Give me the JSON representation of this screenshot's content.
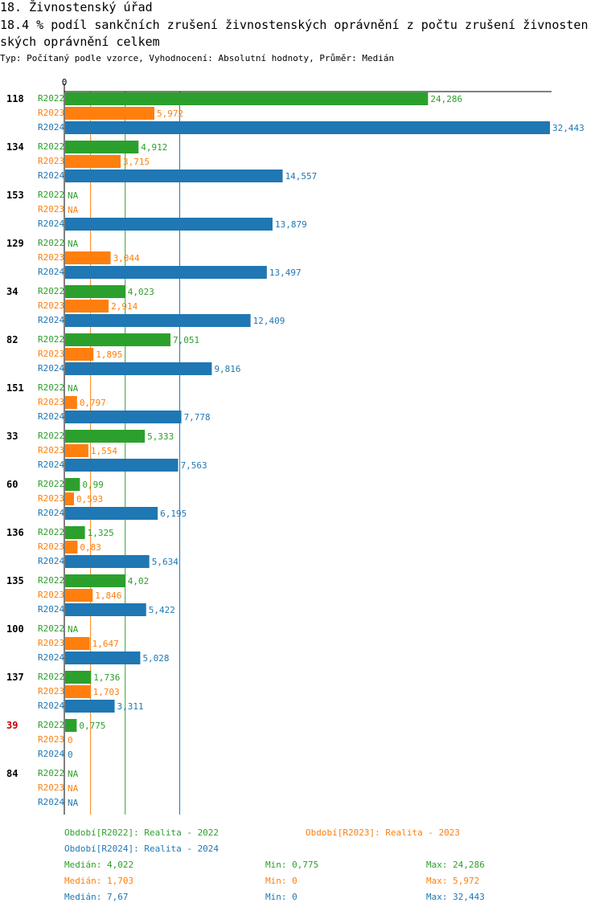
{
  "header": {
    "title_line1": "18. Živnostenský úřad",
    "title_line2": "18.4 % podíl sankčních zrušení živnostenských oprávnění z počtu zrušení živnosten",
    "title_line3": "ských oprávnění  celkem",
    "subtitle": "Typ: Počítaný podle vzorce, Vyhodnocení: Absolutní hodnoty, Průměr: Medián"
  },
  "colors": {
    "R2022": "#2ca02c",
    "R2023": "#ff7f0e",
    "R2024": "#1f77b4",
    "highlight_category": "#cc0000"
  },
  "chart_data": {
    "type": "bar",
    "orientation": "horizontal",
    "title": "18.4 % podíl sankčních zrušení živnostenských oprávnění z počtu zrušení živnostenských oprávnění  celkem",
    "axis_zero_label": "0",
    "xlim": [
      0,
      32.443
    ],
    "series_names": [
      "R2022",
      "R2023",
      "R2024"
    ],
    "categories": [
      "118",
      "134",
      "153",
      "129",
      "34",
      "82",
      "151",
      "33",
      "60",
      "136",
      "135",
      "100",
      "137",
      "39",
      "84"
    ],
    "highlight_categories": [
      "39"
    ],
    "series": [
      {
        "name": "R2022",
        "values": [
          24.286,
          4.912,
          null,
          null,
          4.023,
          7.051,
          null,
          5.333,
          0.99,
          1.325,
          4.02,
          null,
          1.736,
          0.775,
          null
        ],
        "labels": [
          "24,286",
          "4,912",
          "NA",
          "NA",
          "4,023",
          "7,051",
          "NA",
          "5,333",
          "0,99",
          "1,325",
          "4,02",
          "NA",
          "1,736",
          "0,775",
          "NA"
        ]
      },
      {
        "name": "R2023",
        "values": [
          5.972,
          3.715,
          null,
          3.044,
          2.914,
          1.895,
          0.797,
          1.554,
          0.593,
          0.83,
          1.846,
          1.647,
          1.703,
          0,
          null
        ],
        "labels": [
          "5,972",
          "3,715",
          "NA",
          "3,044",
          "2,914",
          "1,895",
          "0,797",
          "1,554",
          "0,593",
          "0,83",
          "1,846",
          "1,647",
          "1,703",
          "0",
          "NA"
        ]
      },
      {
        "name": "R2024",
        "values": [
          32.443,
          14.557,
          13.879,
          13.497,
          12.409,
          9.816,
          7.778,
          7.563,
          6.195,
          5.634,
          5.422,
          5.028,
          3.311,
          0,
          null
        ],
        "labels": [
          "32,443",
          "14,557",
          "13,879",
          "13,497",
          "12,409",
          "9,816",
          "7,778",
          "7,563",
          "6,195",
          "5,634",
          "5,422",
          "5,028",
          "3,311",
          "0",
          "NA"
        ]
      }
    ],
    "median_lines": {
      "R2022": 4.022,
      "R2023": 1.703,
      "R2024": 7.67
    }
  },
  "legend": {
    "r2022": "Období[R2022]: Realita - 2022",
    "r2023": "Období[R2023]: Realita - 2023",
    "r2024": "Období[R2024]: Realita - 2024"
  },
  "stats": {
    "r2022": {
      "median": "Medián: 4,022",
      "min": "Min: 0,775",
      "max": "Max: 24,286"
    },
    "r2023": {
      "median": "Medián: 1,703",
      "min": "Min: 0",
      "max": "Max: 5,972"
    },
    "r2024": {
      "median": "Medián: 7,67",
      "min": "Min: 0",
      "max": "Max: 32,443"
    }
  }
}
